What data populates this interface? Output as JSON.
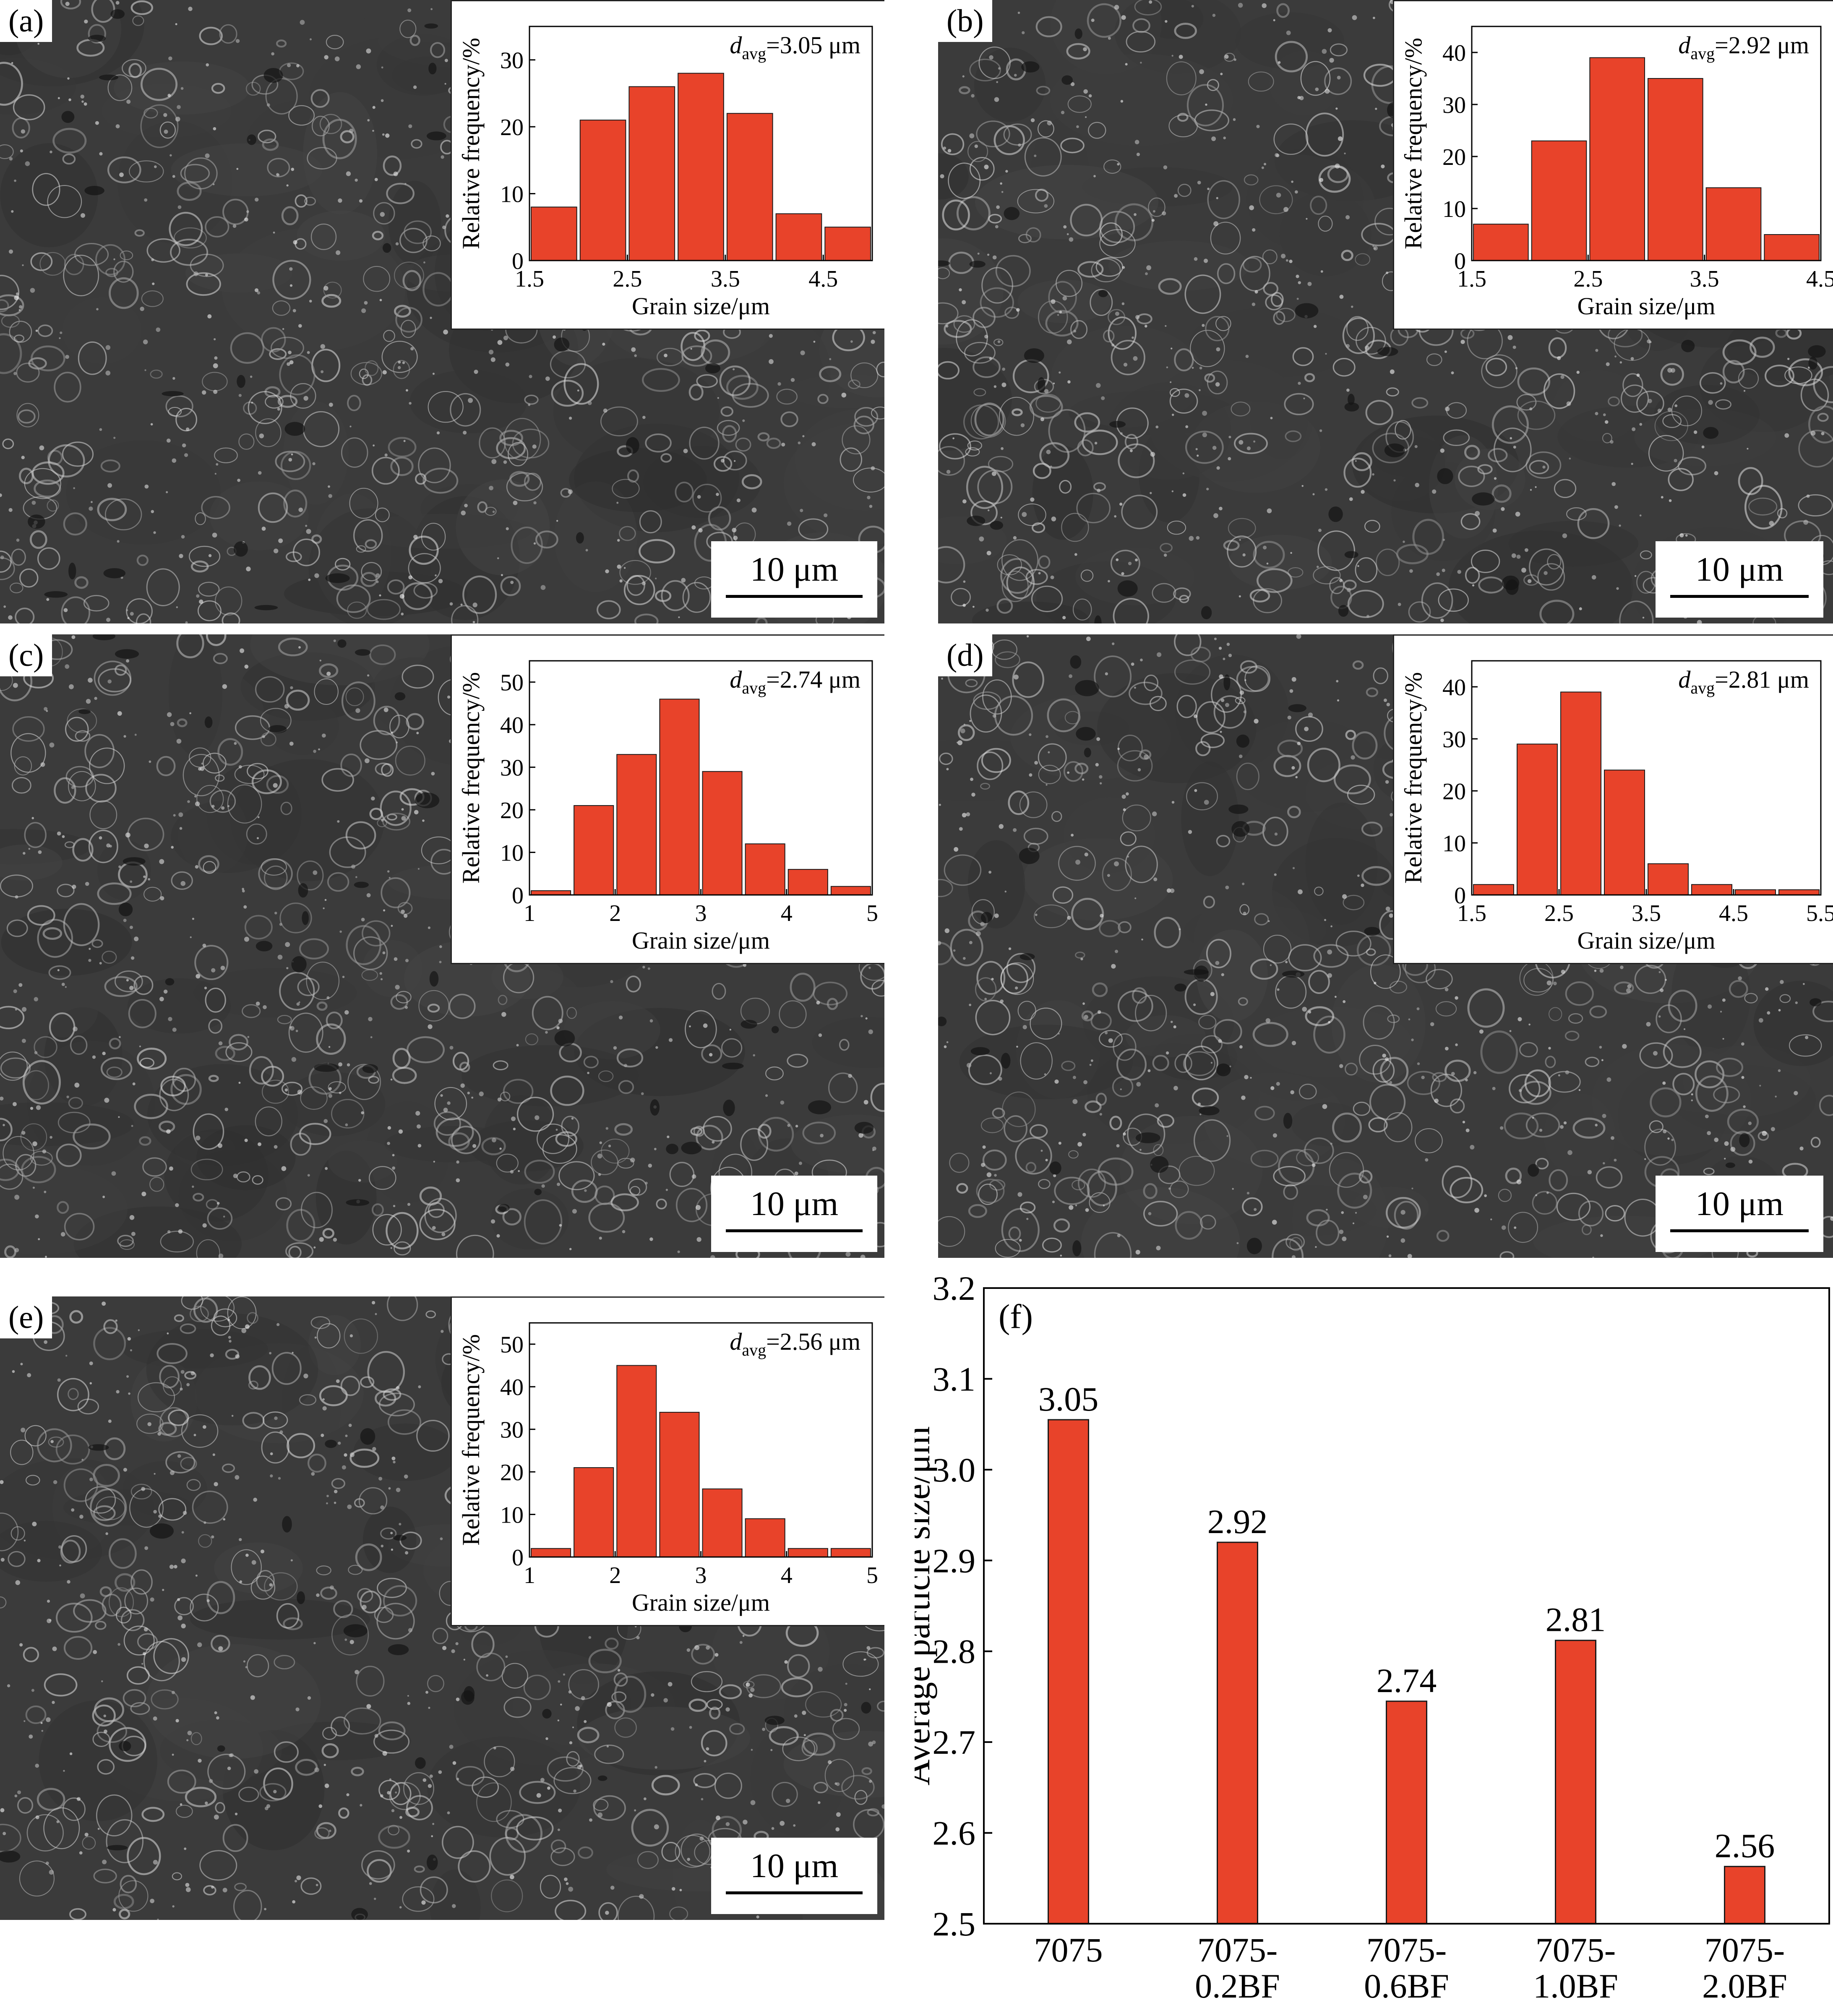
{
  "colors": {
    "bar": "#e8432a",
    "bar_stroke": "#1a1a1a"
  },
  "panels": [
    {
      "label": "(a)",
      "scale_bar": "10 μm",
      "d_symbol": "d",
      "d_sub": "avg",
      "d_value": "=3.05 μm"
    },
    {
      "label": "(b)",
      "scale_bar": "10 μm",
      "d_symbol": "d",
      "d_sub": "avg",
      "d_value": "=2.92 μm"
    },
    {
      "label": "(c)",
      "scale_bar": "10 μm",
      "d_symbol": "d",
      "d_sub": "avg",
      "d_value": "=2.74 μm"
    },
    {
      "label": "(d)",
      "scale_bar": "10 μm",
      "d_symbol": "d",
      "d_sub": "avg",
      "d_value": "=2.81 μm"
    },
    {
      "label": "(e)",
      "scale_bar": "10 μm",
      "d_symbol": "d",
      "d_sub": "avg",
      "d_value": "=2.56 μm"
    }
  ],
  "chart_data": [
    {
      "panel": "(a)",
      "type": "bar",
      "xlabel": "Grain size/μm",
      "ylabel": "Relative frequency/%",
      "xlim": [
        1.5,
        5.0
      ],
      "ylim": [
        0,
        35
      ],
      "xticks": [
        1.5,
        2.5,
        3.5,
        4.5
      ],
      "yticks": [
        0,
        10,
        20,
        30
      ],
      "bin_start": 1.5,
      "bin_width": 0.5,
      "values": [
        8,
        21,
        26,
        28,
        22,
        7,
        5
      ]
    },
    {
      "panel": "(b)",
      "type": "bar",
      "xlabel": "Grain size/μm",
      "ylabel": "Relative frequency/%",
      "xlim": [
        1.5,
        4.5
      ],
      "ylim": [
        0,
        45
      ],
      "xticks": [
        1.5,
        2.5,
        3.5,
        4.5
      ],
      "yticks": [
        0,
        10,
        20,
        30,
        40
      ],
      "bin_start": 1.5,
      "bin_width": 0.5,
      "values": [
        7,
        23,
        39,
        35,
        14,
        5
      ]
    },
    {
      "panel": "(c)",
      "type": "bar",
      "xlabel": "Grain size/μm",
      "ylabel": "Relative frequency/%",
      "xlim": [
        1,
        5
      ],
      "ylim": [
        0,
        55
      ],
      "xticks": [
        1,
        2,
        3,
        4,
        5
      ],
      "yticks": [
        0,
        10,
        20,
        30,
        40,
        50
      ],
      "bin_start": 1.0,
      "bin_width": 0.5,
      "values": [
        1,
        21,
        33,
        46,
        29,
        12,
        6,
        2
      ]
    },
    {
      "panel": "(d)",
      "type": "bar",
      "xlabel": "Grain size/μm",
      "ylabel": "Relative frequency/%",
      "xlim": [
        1.5,
        5.5
      ],
      "ylim": [
        0,
        45
      ],
      "xticks": [
        1.5,
        2.5,
        3.5,
        4.5,
        5.5
      ],
      "yticks": [
        0,
        10,
        20,
        30,
        40
      ],
      "bin_start": 1.5,
      "bin_width": 0.5,
      "values": [
        2,
        29,
        39,
        24,
        6,
        2,
        1,
        1
      ]
    },
    {
      "panel": "(e)",
      "type": "bar",
      "xlabel": "Grain size/μm",
      "ylabel": "Relative frequency/%",
      "xlim": [
        1,
        5
      ],
      "ylim": [
        0,
        55
      ],
      "xticks": [
        1,
        2,
        3,
        4,
        5
      ],
      "yticks": [
        0,
        10,
        20,
        30,
        40,
        50
      ],
      "bin_start": 1.0,
      "bin_width": 0.5,
      "values": [
        2,
        21,
        45,
        34,
        16,
        9,
        2,
        2
      ]
    },
    {
      "panel": "(f)",
      "type": "bar",
      "ylabel": "Average particle size/μm",
      "ylim": [
        2.5,
        3.2
      ],
      "yticks": [
        2.5,
        2.6,
        2.7,
        2.8,
        2.9,
        3.0,
        3.1,
        3.2
      ],
      "categories": [
        [
          "7075"
        ],
        [
          "7075-",
          "0.2BF"
        ],
        [
          "7075-",
          "0.6BF"
        ],
        [
          "7075-",
          "1.0BF"
        ],
        [
          "7075-",
          "2.0BF"
        ]
      ],
      "values": [
        3.055,
        2.92,
        2.745,
        2.812,
        2.563
      ],
      "data_labels": [
        "3.05",
        "2.92",
        "2.74",
        "2.81",
        "2.56"
      ]
    }
  ]
}
